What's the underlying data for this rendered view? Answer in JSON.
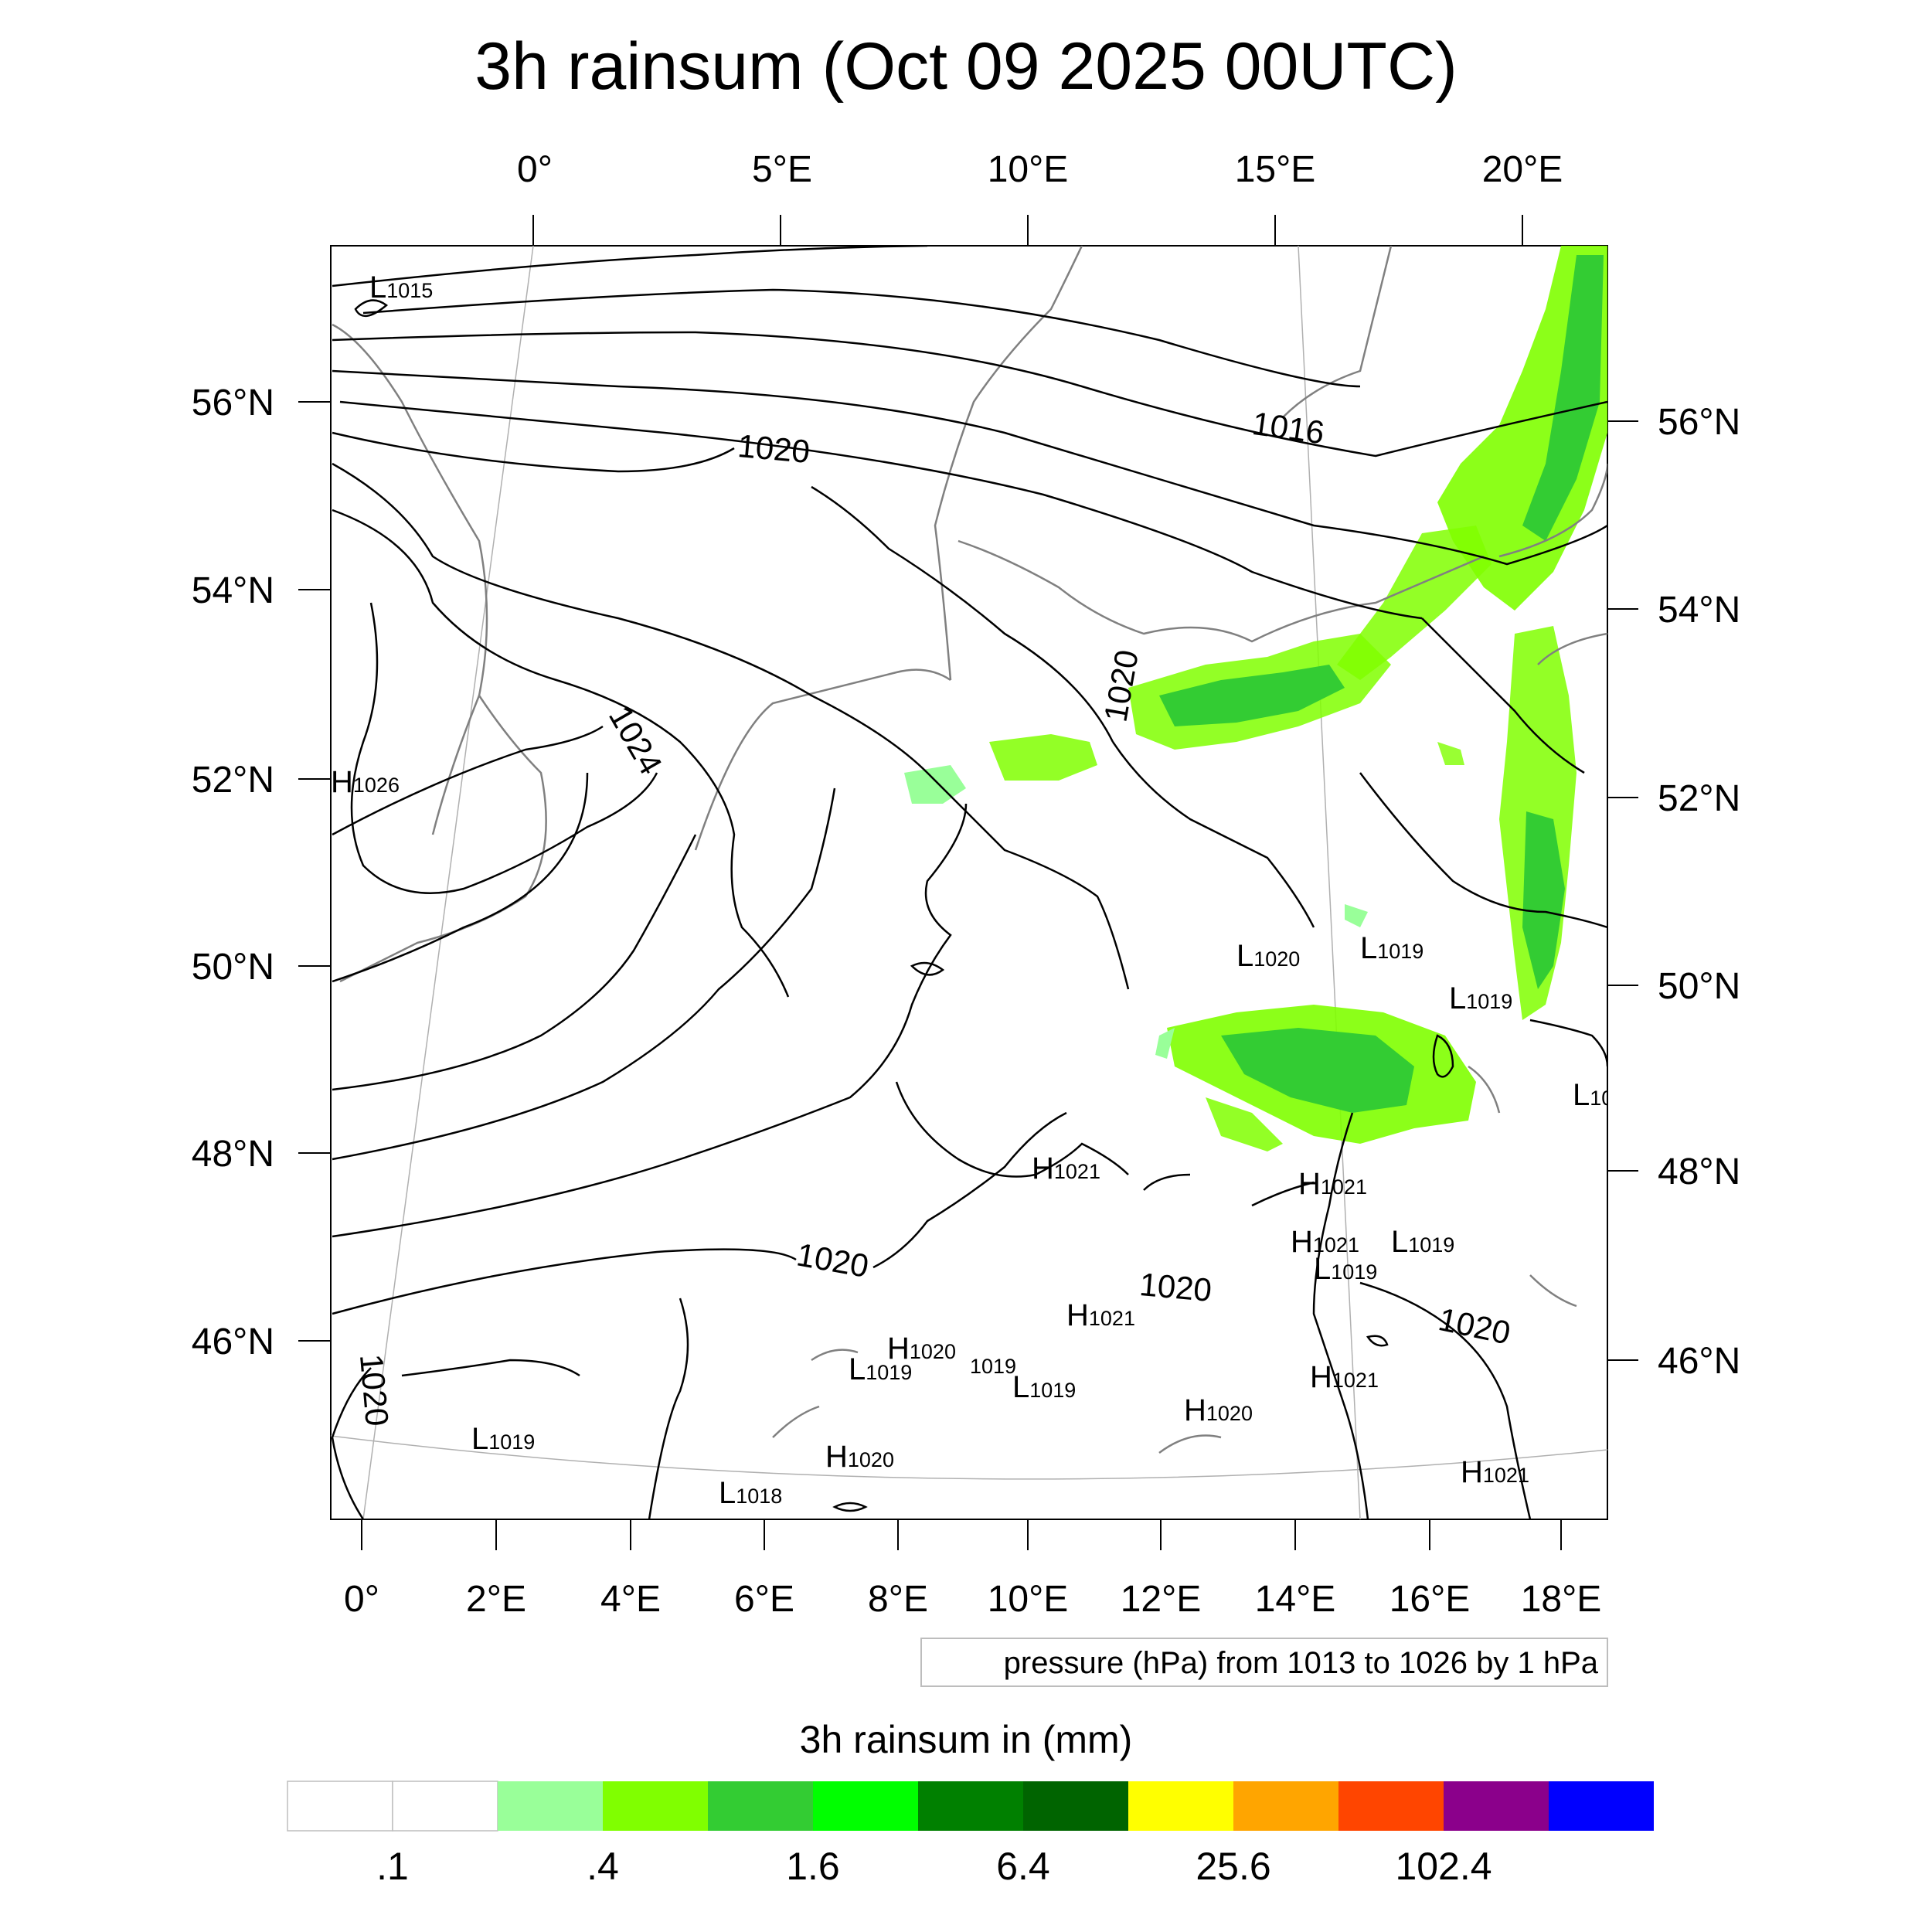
{
  "title": "3h rainsum (Oct 09 2025 00UTC)",
  "top_lon_labels": [
    "0°",
    "5°E",
    "10°E",
    "15°E",
    "20°E"
  ],
  "bottom_lon_labels": [
    "0°",
    "2°E",
    "4°E",
    "6°E",
    "8°E",
    "10°E",
    "12°E",
    "14°E",
    "16°E",
    "18°E"
  ],
  "left_lat_labels": [
    "56°N",
    "54°N",
    "52°N",
    "50°N",
    "48°N",
    "46°N"
  ],
  "right_lat_labels": [
    "56°N",
    "54°N",
    "52°N",
    "50°N",
    "48°N",
    "46°N"
  ],
  "contour_note": "pressure (hPa) from 1013 to 1026 by 1 hPa",
  "contour_labels": [
    "1020",
    "1016",
    "1024",
    "1020",
    "1020",
    "1020",
    "1020",
    "1020"
  ],
  "pressure_centers": [
    {
      "kind": "L",
      "value": "1015"
    },
    {
      "kind": "H",
      "value": "1026"
    },
    {
      "kind": "L",
      "value": "1020"
    },
    {
      "kind": "L",
      "value": "1019"
    },
    {
      "kind": "L",
      "value": "1019"
    },
    {
      "kind": "L",
      "value": "10"
    },
    {
      "kind": "H",
      "value": "1021"
    },
    {
      "kind": "H",
      "value": "1021"
    },
    {
      "kind": "H",
      "value": "1021"
    },
    {
      "kind": "L",
      "value": "1019"
    },
    {
      "kind": "L",
      "value": "1019"
    },
    {
      "kind": "H",
      "value": "1021"
    },
    {
      "kind": "H",
      "value": "1020"
    },
    {
      "kind": "L",
      "value": "1019"
    },
    {
      "kind": "",
      "value": "1019"
    },
    {
      "kind": "L",
      "value": "1019"
    },
    {
      "kind": "H",
      "value": "1021"
    },
    {
      "kind": "H",
      "value": "1020"
    },
    {
      "kind": "L",
      "value": "1019"
    },
    {
      "kind": "H",
      "value": "1020"
    },
    {
      "kind": "L",
      "value": "1018"
    },
    {
      "kind": "H",
      "value": "1021"
    }
  ],
  "legend": {
    "title": "3h rainsum in (mm)",
    "colors": [
      "#ffffff",
      "#ffffff",
      "#99ff99",
      "#80ff00",
      "#33cc33",
      "#00ff00",
      "#008000",
      "#006400",
      "#ffff00",
      "#ffa500",
      "#ff4500",
      "#8b008b",
      "#0000ff"
    ],
    "labels": [
      ".1",
      ".4",
      "1.6",
      "6.4",
      "25.6",
      "102.4"
    ]
  }
}
